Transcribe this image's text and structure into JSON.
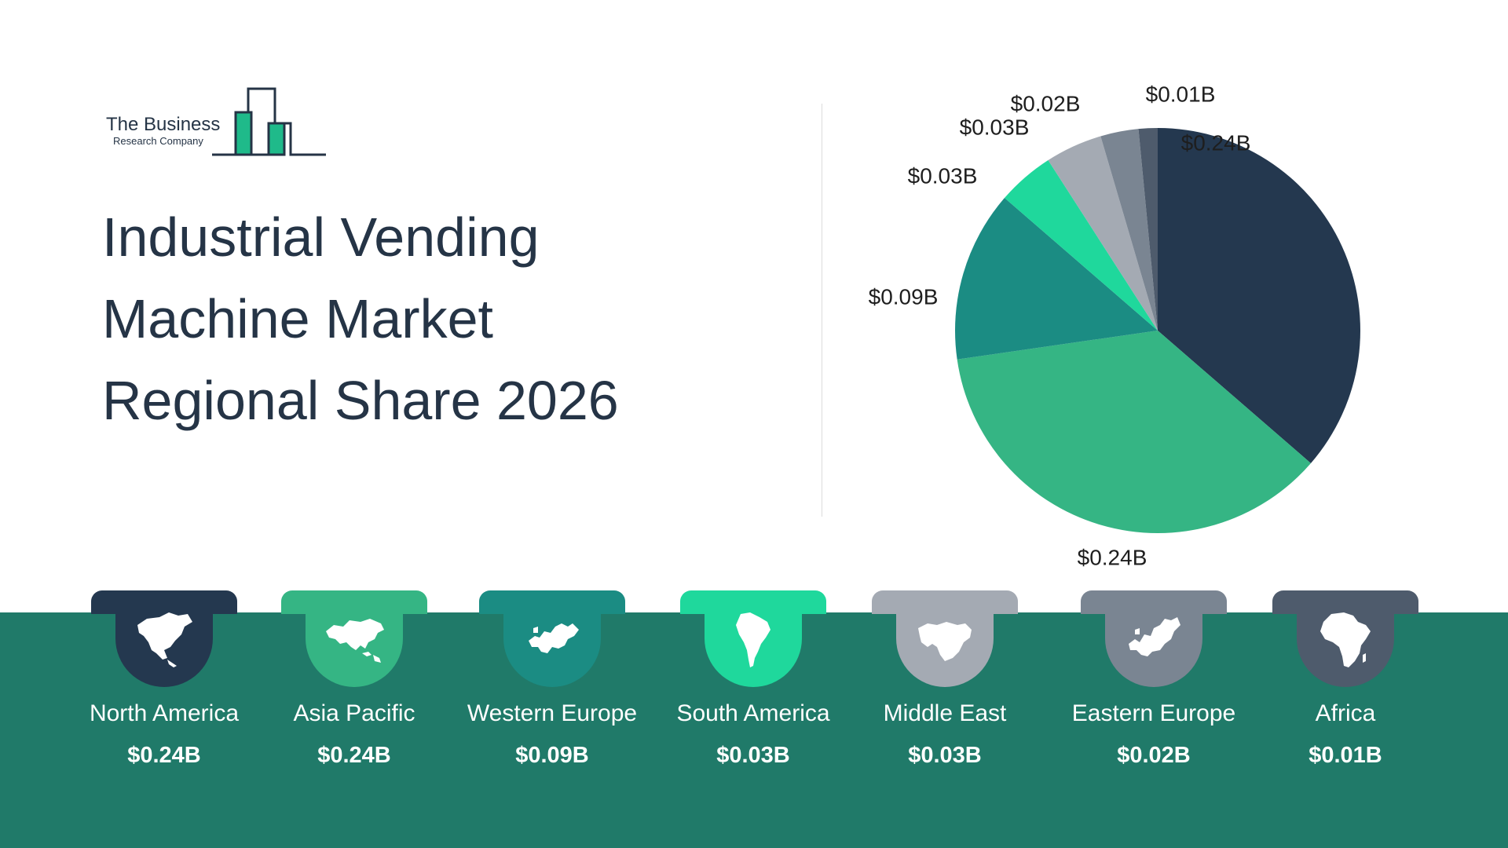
{
  "logo": {
    "line1": "The Business",
    "line2": "Research Company"
  },
  "title_lines": [
    "Industrial Vending",
    "Machine Market",
    "Regional Share 2026"
  ],
  "colors": {
    "text": "#253446",
    "band": "#207a69",
    "north_america": "#24384f",
    "asia_pacific": "#35b584",
    "western_europe": "#1b8c83",
    "south_america": "#1fd89c",
    "middle_east": "#a4aab3",
    "eastern_europe": "#7a8592",
    "africa": "#4e5b6c"
  },
  "chart_data": {
    "type": "pie",
    "title": "Industrial Vending Machine Market Regional Share 2026",
    "unit": "$B",
    "start_angle": "12 o'clock, clockwise",
    "slices": [
      {
        "name": "North America",
        "value": 0.24,
        "label": "$0.24B",
        "color": "#24384f"
      },
      {
        "name": "Asia Pacific",
        "value": 0.24,
        "label": "$0.24B",
        "color": "#35b584"
      },
      {
        "name": "Western Europe",
        "value": 0.09,
        "label": "$0.09B",
        "color": "#1b8c83"
      },
      {
        "name": "South America",
        "value": 0.03,
        "label": "$0.03B",
        "color": "#1fd89c"
      },
      {
        "name": "Middle East",
        "value": 0.03,
        "label": "$0.03B",
        "color": "#a4aab3"
      },
      {
        "name": "Eastern Europe",
        "value": 0.02,
        "label": "$0.02B",
        "color": "#7a8592"
      },
      {
        "name": "Africa",
        "value": 0.01,
        "label": "$0.01B",
        "color": "#4e5b6c"
      }
    ]
  },
  "regions": [
    {
      "name": "North America",
      "value": "$0.24B",
      "icon": "north-america-map-icon",
      "color": "#24384f"
    },
    {
      "name": "Asia Pacific",
      "value": "$0.24B",
      "icon": "asia-pacific-map-icon",
      "color": "#35b584"
    },
    {
      "name": "Western Europe",
      "value": "$0.09B",
      "icon": "western-europe-map-icon",
      "color": "#1b8c83"
    },
    {
      "name": "South America",
      "value": "$0.03B",
      "icon": "south-america-map-icon",
      "color": "#1fd89c"
    },
    {
      "name": "Middle East",
      "value": "$0.03B",
      "icon": "middle-east-map-icon",
      "color": "#a4aab3"
    },
    {
      "name": "Eastern Europe",
      "value": "$0.02B",
      "icon": "eastern-europe-map-icon",
      "color": "#7a8592"
    },
    {
      "name": "Africa",
      "value": "$0.01B",
      "icon": "africa-map-icon",
      "color": "#4e5b6c"
    }
  ]
}
